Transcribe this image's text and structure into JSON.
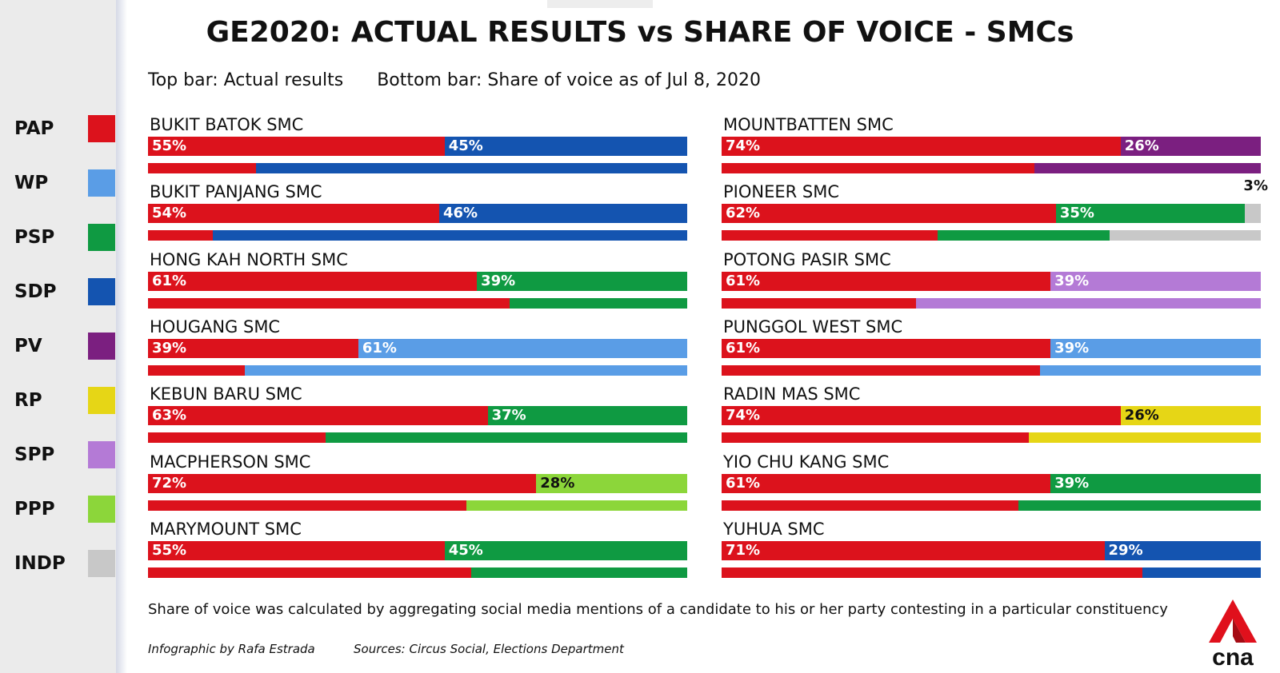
{
  "title": "GE2020: ACTUAL RESULTS vs SHARE OF VOICE - SMCs",
  "subtitle": {
    "top_bar": "Top bar: Actual results",
    "bottom_bar": "Bottom bar: Share of voice as of Jul 8, 2020"
  },
  "legend": [
    {
      "party": "PAP",
      "color": "#dc121c"
    },
    {
      "party": "WP",
      "color": "#5a9de6"
    },
    {
      "party": "PSP",
      "color": "#0f9a42"
    },
    {
      "party": "SDP",
      "color": "#1454b0"
    },
    {
      "party": "PV",
      "color": "#7b1f80"
    },
    {
      "party": "RP",
      "color": "#e6d616"
    },
    {
      "party": "SPP",
      "color": "#b47ad6"
    },
    {
      "party": "PPP",
      "color": "#8cd63a"
    },
    {
      "party": "INDP",
      "color": "#c8c8c8"
    }
  ],
  "chart_data": {
    "type": "bar",
    "orientation": "horizontal-stacked",
    "unit": "%",
    "series_meaning": {
      "top": "Actual results",
      "bottom": "Share of voice as of Jul 8, 2020"
    },
    "constituencies": [
      {
        "name": "BUKIT BATOK SMC",
        "parties": [
          "PAP",
          "SDP"
        ],
        "actual": [
          55,
          45
        ],
        "actual_labels": [
          "55%",
          "45%"
        ],
        "share_of_voice": [
          20,
          80
        ]
      },
      {
        "name": "BUKIT PANJANG SMC",
        "parties": [
          "PAP",
          "SDP"
        ],
        "actual": [
          54,
          46
        ],
        "actual_labels": [
          "54%",
          "46%"
        ],
        "share_of_voice": [
          12,
          88
        ]
      },
      {
        "name": "HONG KAH NORTH SMC",
        "parties": [
          "PAP",
          "PSP"
        ],
        "actual": [
          61,
          39
        ],
        "actual_labels": [
          "61%",
          "39%"
        ],
        "share_of_voice": [
          67,
          33
        ]
      },
      {
        "name": "HOUGANG SMC",
        "parties": [
          "PAP",
          "WP"
        ],
        "actual": [
          39,
          61
        ],
        "actual_labels": [
          "39%",
          "61%"
        ],
        "share_of_voice": [
          18,
          82
        ]
      },
      {
        "name": "KEBUN BARU SMC",
        "parties": [
          "PAP",
          "PSP"
        ],
        "actual": [
          63,
          37
        ],
        "actual_labels": [
          "63%",
          "37%"
        ],
        "share_of_voice": [
          33,
          67
        ]
      },
      {
        "name": "MACPHERSON SMC",
        "parties": [
          "PAP",
          "PPP"
        ],
        "actual": [
          72,
          28
        ],
        "actual_labels": [
          "72%",
          "28%"
        ],
        "share_of_voice": [
          59,
          41
        ]
      },
      {
        "name": "MARYMOUNT SMC",
        "parties": [
          "PAP",
          "PSP"
        ],
        "actual": [
          55,
          45
        ],
        "actual_labels": [
          "55%",
          "45%"
        ],
        "share_of_voice": [
          60,
          40
        ]
      },
      {
        "name": "MOUNTBATTEN SMC",
        "parties": [
          "PAP",
          "PV"
        ],
        "actual": [
          74,
          26
        ],
        "actual_labels": [
          "74%",
          "26%"
        ],
        "share_of_voice": [
          58,
          42
        ]
      },
      {
        "name": "PIONEER SMC",
        "parties": [
          "PAP",
          "PSP",
          "INDP"
        ],
        "actual": [
          62,
          35,
          3
        ],
        "actual_labels": [
          "62%",
          "35%",
          "3%"
        ],
        "share_of_voice": [
          40,
          32,
          28
        ]
      },
      {
        "name": "POTONG PASIR SMC",
        "parties": [
          "PAP",
          "SPP"
        ],
        "actual": [
          61,
          39
        ],
        "actual_labels": [
          "61%",
          "39%"
        ],
        "share_of_voice": [
          36,
          64
        ]
      },
      {
        "name": "PUNGGOL WEST SMC",
        "parties": [
          "PAP",
          "WP"
        ],
        "actual": [
          61,
          39
        ],
        "actual_labels": [
          "61%",
          "39%"
        ],
        "share_of_voice": [
          59,
          41
        ]
      },
      {
        "name": "RADIN MAS SMC",
        "parties": [
          "PAP",
          "RP"
        ],
        "actual": [
          74,
          26
        ],
        "actual_labels": [
          "74%",
          "26%"
        ],
        "share_of_voice": [
          57,
          43
        ]
      },
      {
        "name": "YIO CHU KANG SMC",
        "parties": [
          "PAP",
          "PSP"
        ],
        "actual": [
          61,
          39
        ],
        "actual_labels": [
          "61%",
          "39%"
        ],
        "share_of_voice": [
          55,
          45
        ]
      },
      {
        "name": "YUHUA SMC",
        "parties": [
          "PAP",
          "SDP"
        ],
        "actual": [
          71,
          29
        ],
        "actual_labels": [
          "71%",
          "29%"
        ],
        "share_of_voice": [
          78,
          22
        ]
      }
    ]
  },
  "footnote": "Share of voice was calculated by aggregating social media mentions of a candidate to his or her party contesting in a particular constituency",
  "credit": "Infographic by Rafa Estrada",
  "sources": "Sources: Circus Social, Elections Department",
  "logo": {
    "text": "cna",
    "color": "#e0101c"
  }
}
